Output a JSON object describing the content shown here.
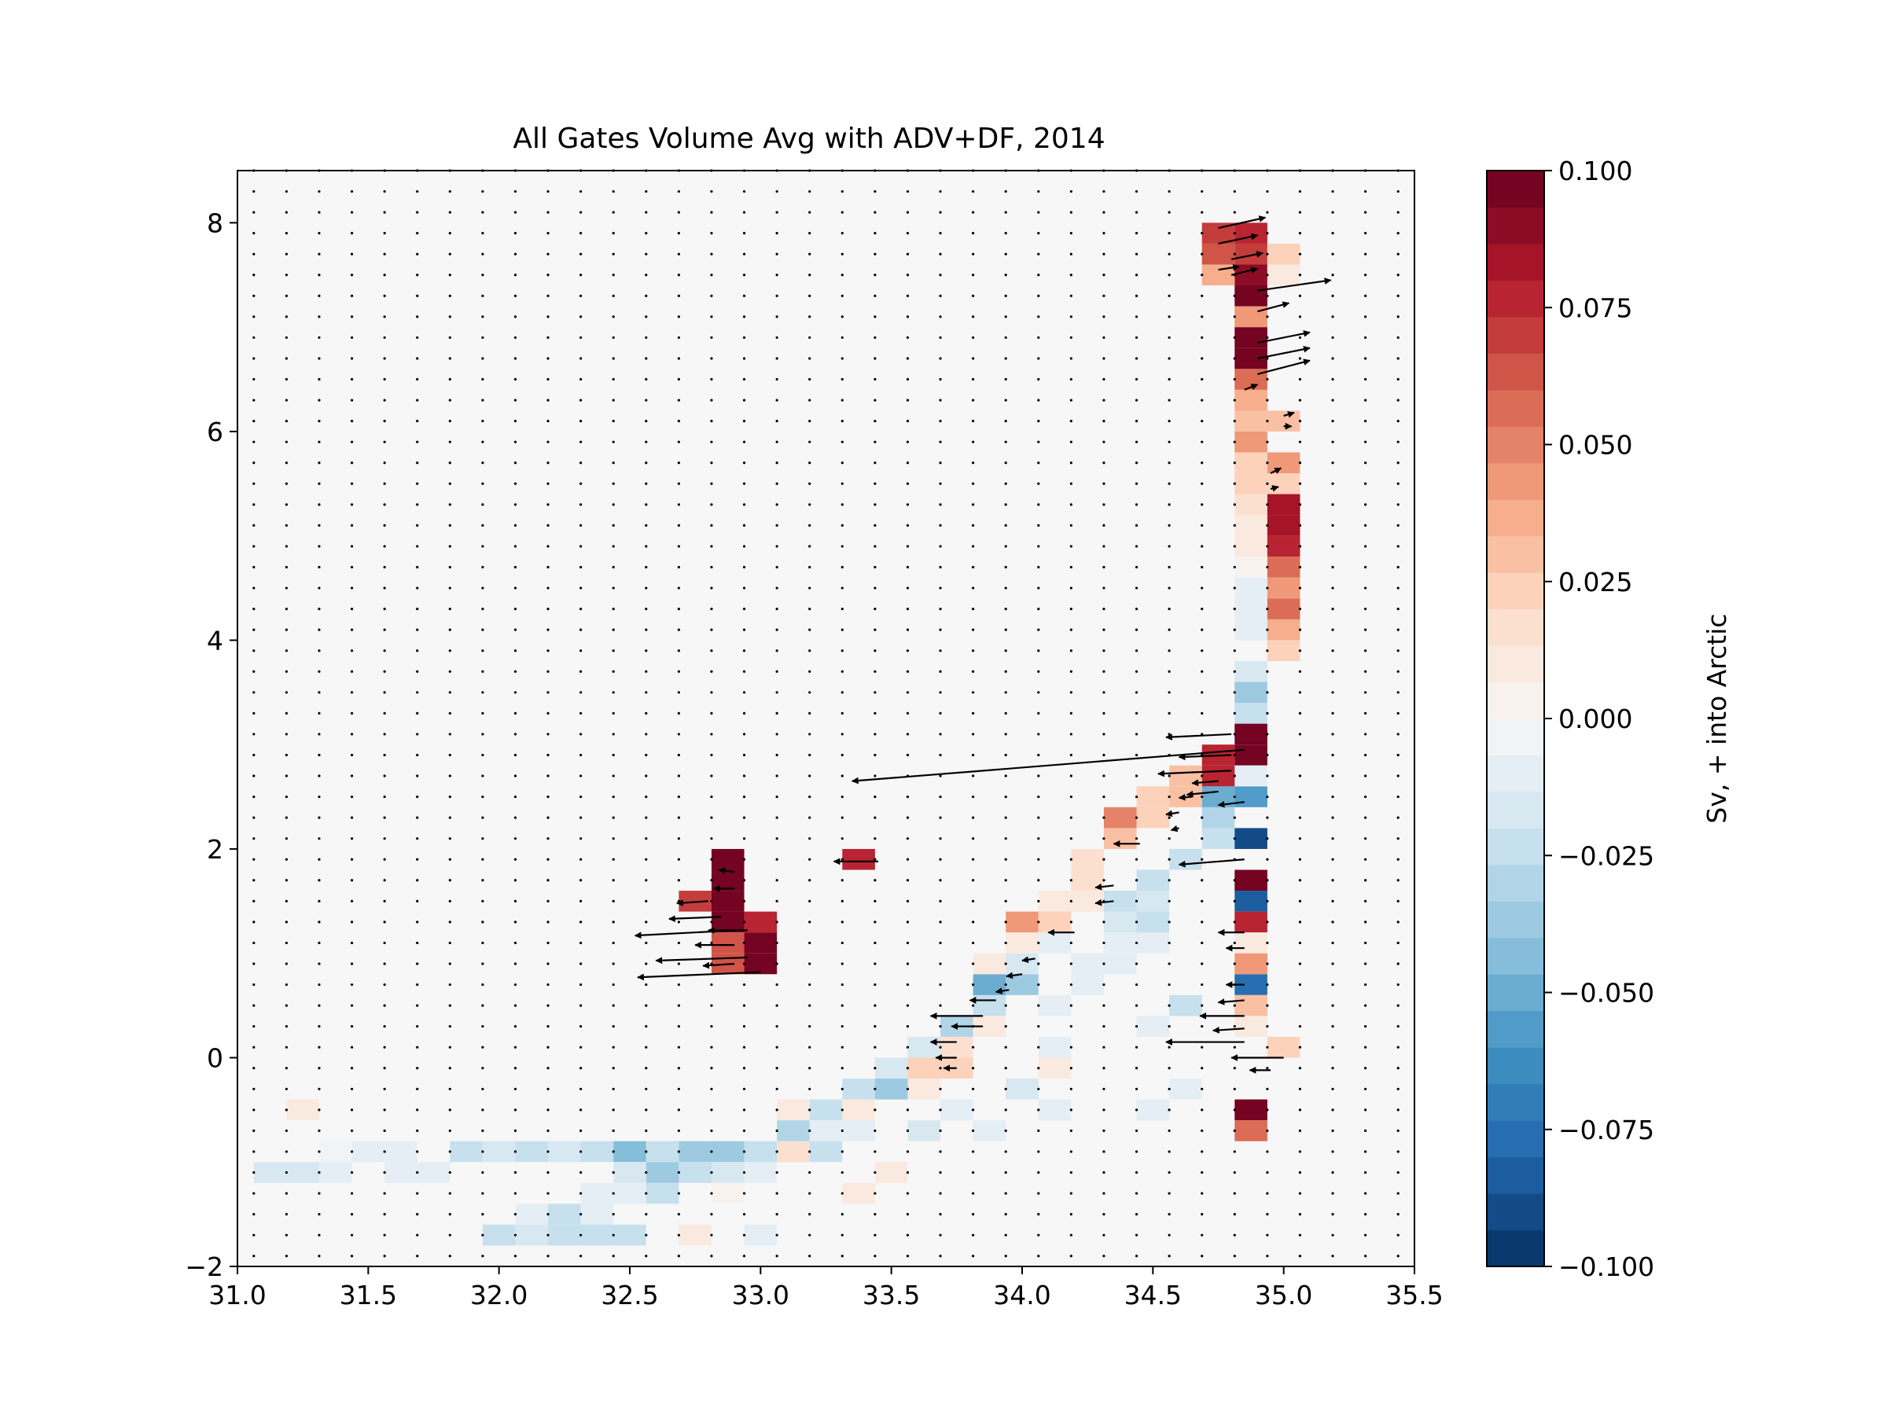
{
  "chart_data": {
    "type": "heatmap",
    "title": "All Gates Volume Avg with ADV+DF, 2014",
    "xlabel": "",
    "ylabel": "",
    "xlim": [
      31.0,
      35.5
    ],
    "ylim": [
      -2,
      8.5
    ],
    "xticks": [
      "31.0",
      "31.5",
      "32.0",
      "32.5",
      "33.0",
      "33.5",
      "34.0",
      "34.5",
      "35.0",
      "35.5"
    ],
    "yticks": [
      "−2",
      "0",
      "2",
      "4",
      "6",
      "8"
    ],
    "bin_width_x": 0.125,
    "bin_height_y": 0.2,
    "colorbar": {
      "label": "Sv, + into Arctic",
      "range": [
        -0.1,
        0.1
      ],
      "ticks": [
        "0.100",
        "0.075",
        "0.050",
        "0.025",
        "0.000",
        "−0.025",
        "−0.050",
        "−0.075",
        "−0.100"
      ],
      "levels": 30,
      "colormap": "RdBu_r"
    },
    "colors": {
      "background_zero": "#f7f7f7",
      "positive_max": "#67001f",
      "negative_max": "#053061"
    },
    "cells": [
      {
        "x": 31.125,
        "y": -1.2,
        "v": -0.015
      },
      {
        "x": 31.25,
        "y": -1.2,
        "v": -0.015
      },
      {
        "x": 31.375,
        "y": -1.2,
        "v": -0.012
      },
      {
        "x": 31.375,
        "y": -1.0,
        "v": -0.006
      },
      {
        "x": 31.5,
        "y": -1.0,
        "v": -0.01
      },
      {
        "x": 31.625,
        "y": -1.0,
        "v": -0.01
      },
      {
        "x": 31.625,
        "y": -1.2,
        "v": -0.01
      },
      {
        "x": 31.75,
        "y": -1.2,
        "v": -0.008
      },
      {
        "x": 31.875,
        "y": -1.0,
        "v": -0.02
      },
      {
        "x": 32.0,
        "y": -1.0,
        "v": -0.015
      },
      {
        "x": 32.125,
        "y": -1.0,
        "v": -0.025
      },
      {
        "x": 32.25,
        "y": -1.0,
        "v": -0.015
      },
      {
        "x": 32.375,
        "y": -1.0,
        "v": -0.025
      },
      {
        "x": 32.5,
        "y": -1.0,
        "v": -0.045
      },
      {
        "x": 32.625,
        "y": -1.0,
        "v": -0.025
      },
      {
        "x": 32.75,
        "y": -1.0,
        "v": -0.035
      },
      {
        "x": 32.875,
        "y": -1.0,
        "v": -0.04
      },
      {
        "x": 33.0,
        "y": -1.0,
        "v": -0.025
      },
      {
        "x": 33.125,
        "y": -1.0,
        "v": -0.02
      },
      {
        "x": 33.25,
        "y": -1.0,
        "v": -0.025
      },
      {
        "x": 32.625,
        "y": -1.2,
        "v": -0.035
      },
      {
        "x": 32.75,
        "y": -1.2,
        "v": -0.025
      },
      {
        "x": 32.875,
        "y": -1.2,
        "v": -0.015
      },
      {
        "x": 32.5,
        "y": -1.2,
        "v": -0.015
      },
      {
        "x": 33.0,
        "y": -1.2,
        "v": -0.01
      },
      {
        "x": 32.625,
        "y": -1.4,
        "v": -0.025
      },
      {
        "x": 32.5,
        "y": -1.4,
        "v": -0.012
      },
      {
        "x": 32.375,
        "y": -1.4,
        "v": -0.01
      },
      {
        "x": 32.875,
        "y": -1.4,
        "v": 0.006
      },
      {
        "x": 33.375,
        "y": -1.4,
        "v": 0.008
      },
      {
        "x": 33.5,
        "y": -1.2,
        "v": 0.01
      },
      {
        "x": 32.25,
        "y": -1.6,
        "v": -0.02
      },
      {
        "x": 32.375,
        "y": -1.6,
        "v": -0.01
      },
      {
        "x": 32.125,
        "y": -1.6,
        "v": -0.008
      },
      {
        "x": 32.0,
        "y": -1.8,
        "v": -0.02
      },
      {
        "x": 32.125,
        "y": -1.8,
        "v": -0.015
      },
      {
        "x": 32.25,
        "y": -1.8,
        "v": -0.025
      },
      {
        "x": 32.375,
        "y": -1.8,
        "v": -0.02
      },
      {
        "x": 32.5,
        "y": -1.8,
        "v": -0.025
      },
      {
        "x": 32.75,
        "y": -1.8,
        "v": 0.008
      },
      {
        "x": 33.0,
        "y": -1.8,
        "v": -0.008
      },
      {
        "x": 31.25,
        "y": -0.6,
        "v": 0.008
      },
      {
        "x": 33.125,
        "y": -0.8,
        "v": -0.03
      },
      {
        "x": 33.25,
        "y": -0.6,
        "v": -0.025
      },
      {
        "x": 33.375,
        "y": -0.4,
        "v": -0.025
      },
      {
        "x": 33.5,
        "y": -0.4,
        "v": -0.035
      },
      {
        "x": 33.5,
        "y": -0.2,
        "v": -0.015
      },
      {
        "x": 33.625,
        "y": 0.0,
        "v": -0.015
      },
      {
        "x": 33.75,
        "y": 0.2,
        "v": -0.03
      },
      {
        "x": 33.875,
        "y": 0.4,
        "v": -0.025
      },
      {
        "x": 34.0,
        "y": 0.6,
        "v": -0.035
      },
      {
        "x": 33.875,
        "y": 0.6,
        "v": -0.05
      },
      {
        "x": 34.0,
        "y": 0.8,
        "v": -0.015
      },
      {
        "x": 34.125,
        "y": 1.0,
        "v": -0.01
      },
      {
        "x": 34.375,
        "y": 1.2,
        "v": -0.015
      },
      {
        "x": 34.375,
        "y": 1.4,
        "v": -0.02
      },
      {
        "x": 34.5,
        "y": 1.4,
        "v": -0.015
      },
      {
        "x": 34.5,
        "y": 1.6,
        "v": -0.02
      },
      {
        "x": 34.625,
        "y": 1.8,
        "v": -0.025
      },
      {
        "x": 34.75,
        "y": 2.0,
        "v": -0.02
      },
      {
        "x": 34.75,
        "y": 2.2,
        "v": -0.03
      },
      {
        "x": 34.75,
        "y": 2.4,
        "v": -0.05
      },
      {
        "x": 34.875,
        "y": 2.4,
        "v": -0.06
      },
      {
        "x": 34.875,
        "y": 2.0,
        "v": -0.09
      },
      {
        "x": 34.875,
        "y": 1.4,
        "v": -0.085
      },
      {
        "x": 34.875,
        "y": 0.6,
        "v": -0.08
      },
      {
        "x": 34.875,
        "y": 3.2,
        "v": -0.025
      },
      {
        "x": 34.875,
        "y": 3.4,
        "v": -0.04
      },
      {
        "x": 34.875,
        "y": 3.6,
        "v": -0.015
      },
      {
        "x": 34.875,
        "y": 4.0,
        "v": -0.01
      },
      {
        "x": 34.875,
        "y": 4.2,
        "v": -0.01
      },
      {
        "x": 34.875,
        "y": 4.4,
        "v": -0.01
      },
      {
        "x": 34.875,
        "y": 4.6,
        "v": 0.006
      },
      {
        "x": 34.875,
        "y": 4.8,
        "v": 0.01
      },
      {
        "x": 34.875,
        "y": 5.0,
        "v": 0.012
      },
      {
        "x": 34.875,
        "y": 5.2,
        "v": 0.015
      },
      {
        "x": 34.875,
        "y": 5.4,
        "v": 0.02
      },
      {
        "x": 34.875,
        "y": 5.6,
        "v": 0.025
      },
      {
        "x": 34.875,
        "y": 5.8,
        "v": 0.045
      },
      {
        "x": 34.875,
        "y": 6.0,
        "v": 0.03
      },
      {
        "x": 34.875,
        "y": 6.2,
        "v": 0.035
      },
      {
        "x": 34.875,
        "y": 6.4,
        "v": 0.06
      },
      {
        "x": 34.875,
        "y": 6.6,
        "v": 0.1
      },
      {
        "x": 34.875,
        "y": 6.8,
        "v": 0.1
      },
      {
        "x": 34.875,
        "y": 7.0,
        "v": 0.045
      },
      {
        "x": 34.875,
        "y": 7.2,
        "v": 0.1
      },
      {
        "x": 34.875,
        "y": 7.4,
        "v": 0.09
      },
      {
        "x": 34.875,
        "y": 7.6,
        "v": 0.07
      },
      {
        "x": 34.875,
        "y": 7.8,
        "v": 0.08
      },
      {
        "x": 34.75,
        "y": 7.8,
        "v": 0.07
      },
      {
        "x": 34.75,
        "y": 7.6,
        "v": 0.065
      },
      {
        "x": 34.75,
        "y": 7.4,
        "v": 0.035
      },
      {
        "x": 35.0,
        "y": 7.6,
        "v": 0.025
      },
      {
        "x": 35.0,
        "y": 7.4,
        "v": 0.01
      },
      {
        "x": 35.0,
        "y": 6.0,
        "v": 0.03
      },
      {
        "x": 35.0,
        "y": 5.6,
        "v": 0.04
      },
      {
        "x": 35.0,
        "y": 5.4,
        "v": 0.02
      },
      {
        "x": 35.0,
        "y": 5.2,
        "v": 0.085
      },
      {
        "x": 35.0,
        "y": 5.0,
        "v": 0.085
      },
      {
        "x": 35.0,
        "y": 4.8,
        "v": 0.08
      },
      {
        "x": 35.0,
        "y": 4.6,
        "v": 0.06
      },
      {
        "x": 35.0,
        "y": 4.4,
        "v": 0.04
      },
      {
        "x": 35.0,
        "y": 4.2,
        "v": 0.055
      },
      {
        "x": 35.0,
        "y": 4.0,
        "v": 0.035
      },
      {
        "x": 35.0,
        "y": 3.8,
        "v": 0.025
      },
      {
        "x": 34.875,
        "y": 3.0,
        "v": 0.1
      },
      {
        "x": 34.875,
        "y": 2.8,
        "v": 0.1
      },
      {
        "x": 34.875,
        "y": 2.6,
        "v": -0.01
      },
      {
        "x": 34.75,
        "y": 2.8,
        "v": 0.08
      },
      {
        "x": 34.75,
        "y": 2.6,
        "v": 0.075
      },
      {
        "x": 34.625,
        "y": 2.6,
        "v": 0.03
      },
      {
        "x": 34.625,
        "y": 2.4,
        "v": 0.03
      },
      {
        "x": 34.5,
        "y": 2.4,
        "v": 0.02
      },
      {
        "x": 34.5,
        "y": 2.2,
        "v": 0.02
      },
      {
        "x": 34.375,
        "y": 2.0,
        "v": 0.03
      },
      {
        "x": 34.375,
        "y": 2.2,
        "v": 0.05
      },
      {
        "x": 34.25,
        "y": 1.8,
        "v": 0.015
      },
      {
        "x": 34.25,
        "y": 1.6,
        "v": 0.015
      },
      {
        "x": 34.125,
        "y": 1.4,
        "v": 0.012
      },
      {
        "x": 34.25,
        "y": 1.4,
        "v": 0.01
      },
      {
        "x": 34.0,
        "y": 1.2,
        "v": 0.04
      },
      {
        "x": 34.125,
        "y": 1.2,
        "v": 0.02
      },
      {
        "x": 34.0,
        "y": 1.0,
        "v": 0.012
      },
      {
        "x": 33.875,
        "y": 0.8,
        "v": 0.008
      },
      {
        "x": 33.875,
        "y": 0.2,
        "v": 0.01
      },
      {
        "x": 33.75,
        "y": 0.0,
        "v": 0.015
      },
      {
        "x": 33.75,
        "y": -0.2,
        "v": 0.02
      },
      {
        "x": 33.625,
        "y": -0.2,
        "v": 0.025
      },
      {
        "x": 33.625,
        "y": -0.4,
        "v": 0.01
      },
      {
        "x": 33.375,
        "y": -0.6,
        "v": 0.008
      },
      {
        "x": 33.375,
        "y": -0.8,
        "v": -0.01
      },
      {
        "x": 33.625,
        "y": -0.8,
        "v": -0.015
      },
      {
        "x": 33.75,
        "y": -0.6,
        "v": -0.01
      },
      {
        "x": 33.875,
        "y": -0.8,
        "v": -0.01
      },
      {
        "x": 34.0,
        "y": -0.4,
        "v": -0.015
      },
      {
        "x": 34.125,
        "y": -0.6,
        "v": -0.008
      },
      {
        "x": 34.125,
        "y": 0.0,
        "v": -0.008
      },
      {
        "x": 34.125,
        "y": 0.4,
        "v": -0.01
      },
      {
        "x": 34.25,
        "y": 0.6,
        "v": -0.008
      },
      {
        "x": 34.25,
        "y": 0.8,
        "v": -0.01
      },
      {
        "x": 34.375,
        "y": 0.8,
        "v": -0.012
      },
      {
        "x": 34.5,
        "y": 1.0,
        "v": -0.01
      },
      {
        "x": 34.375,
        "y": 1.0,
        "v": -0.008
      },
      {
        "x": 34.5,
        "y": 1.2,
        "v": -0.025
      },
      {
        "x": 34.5,
        "y": 0.2,
        "v": -0.01
      },
      {
        "x": 34.625,
        "y": 0.4,
        "v": -0.02
      },
      {
        "x": 34.625,
        "y": -0.4,
        "v": -0.012
      },
      {
        "x": 34.5,
        "y": -0.6,
        "v": -0.01
      },
      {
        "x": 34.125,
        "y": -0.2,
        "v": 0.01
      },
      {
        "x": 33.25,
        "y": -0.8,
        "v": -0.012
      },
      {
        "x": 33.125,
        "y": -0.6,
        "v": 0.008
      },
      {
        "x": 33.125,
        "y": -1.0,
        "v": 0.015
      },
      {
        "x": 34.875,
        "y": 1.6,
        "v": 0.1
      },
      {
        "x": 34.875,
        "y": 1.2,
        "v": 0.075
      },
      {
        "x": 34.875,
        "y": 1.0,
        "v": 0.01
      },
      {
        "x": 34.875,
        "y": 0.8,
        "v": 0.045
      },
      {
        "x": 34.875,
        "y": 0.4,
        "v": 0.03
      },
      {
        "x": 34.875,
        "y": 0.2,
        "v": 0.012
      },
      {
        "x": 34.875,
        "y": -0.6,
        "v": 0.1
      },
      {
        "x": 34.875,
        "y": -0.8,
        "v": 0.055
      },
      {
        "x": 35.0,
        "y": 0.0,
        "v": 0.025
      },
      {
        "x": 33.375,
        "y": 1.8,
        "v": 0.08
      },
      {
        "x": 32.875,
        "y": 1.8,
        "v": 0.1
      },
      {
        "x": 32.875,
        "y": 1.6,
        "v": 0.1
      },
      {
        "x": 32.75,
        "y": 1.4,
        "v": 0.07
      },
      {
        "x": 32.875,
        "y": 1.4,
        "v": 0.1
      },
      {
        "x": 32.875,
        "y": 1.2,
        "v": 0.1
      },
      {
        "x": 33.0,
        "y": 1.2,
        "v": 0.075
      },
      {
        "x": 32.875,
        "y": 1.0,
        "v": 0.065
      },
      {
        "x": 33.0,
        "y": 1.0,
        "v": 0.1
      },
      {
        "x": 33.0,
        "y": 0.8,
        "v": 0.1
      },
      {
        "x": 32.875,
        "y": 0.8,
        "v": 0.065
      }
    ],
    "arrows": [
      {
        "x": 34.75,
        "y": 7.95,
        "u": 0.18,
        "v": 0.1
      },
      {
        "x": 34.75,
        "y": 7.8,
        "u": 0.15,
        "v": 0.08
      },
      {
        "x": 34.8,
        "y": 7.65,
        "u": 0.12,
        "v": 0.06
      },
      {
        "x": 34.8,
        "y": 7.5,
        "u": 0.1,
        "v": 0.06
      },
      {
        "x": 34.75,
        "y": 7.55,
        "u": 0.08,
        "v": 0.03
      },
      {
        "x": 34.9,
        "y": 7.35,
        "u": 0.28,
        "v": 0.1
      },
      {
        "x": 34.9,
        "y": 7.15,
        "u": 0.12,
        "v": 0.08
      },
      {
        "x": 34.9,
        "y": 6.85,
        "u": 0.2,
        "v": 0.1
      },
      {
        "x": 34.9,
        "y": 6.7,
        "u": 0.2,
        "v": 0.1
      },
      {
        "x": 34.9,
        "y": 6.55,
        "u": 0.2,
        "v": 0.13
      },
      {
        "x": 34.85,
        "y": 6.4,
        "u": 0.05,
        "v": 0.05
      },
      {
        "x": 35.0,
        "y": 6.15,
        "u": 0.04,
        "v": 0.03
      },
      {
        "x": 35.0,
        "y": 6.05,
        "u": 0.03,
        "v": 0.0
      },
      {
        "x": 34.95,
        "y": 5.6,
        "u": 0.04,
        "v": 0.05
      },
      {
        "x": 34.95,
        "y": 5.45,
        "u": 0.03,
        "v": 0.02
      },
      {
        "x": 34.8,
        "y": 3.1,
        "u": -0.25,
        "v": -0.03
      },
      {
        "x": 34.8,
        "y": 2.9,
        "u": -0.2,
        "v": -0.02
      },
      {
        "x": 34.85,
        "y": 2.95,
        "u": -1.5,
        "v": -0.3
      },
      {
        "x": 34.8,
        "y": 2.75,
        "u": -0.28,
        "v": -0.03
      },
      {
        "x": 34.75,
        "y": 2.65,
        "u": -0.1,
        "v": -0.02
      },
      {
        "x": 34.75,
        "y": 2.55,
        "u": -0.12,
        "v": -0.03
      },
      {
        "x": 34.65,
        "y": 2.5,
        "u": -0.05,
        "v": -0.01
      },
      {
        "x": 34.85,
        "y": 2.45,
        "u": -0.1,
        "v": -0.03
      },
      {
        "x": 34.6,
        "y": 2.35,
        "u": -0.05,
        "v": -0.02
      },
      {
        "x": 34.6,
        "y": 2.2,
        "u": -0.03,
        "v": -0.02
      },
      {
        "x": 34.45,
        "y": 2.05,
        "u": -0.1,
        "v": 0.0
      },
      {
        "x": 34.85,
        "y": 1.9,
        "u": -0.25,
        "v": -0.05
      },
      {
        "x": 34.35,
        "y": 1.65,
        "u": -0.07,
        "v": -0.02
      },
      {
        "x": 34.35,
        "y": 1.5,
        "u": -0.07,
        "v": -0.02
      },
      {
        "x": 34.2,
        "y": 1.2,
        "u": -0.1,
        "v": 0.0
      },
      {
        "x": 34.85,
        "y": 1.2,
        "u": -0.1,
        "v": 0.0
      },
      {
        "x": 34.85,
        "y": 1.05,
        "u": -0.07,
        "v": 0.0
      },
      {
        "x": 34.05,
        "y": 0.95,
        "u": -0.05,
        "v": -0.02
      },
      {
        "x": 34.0,
        "y": 0.8,
        "u": -0.06,
        "v": -0.02
      },
      {
        "x": 33.95,
        "y": 0.65,
        "u": -0.05,
        "v": -0.02
      },
      {
        "x": 34.85,
        "y": 0.7,
        "u": -0.07,
        "v": 0.0
      },
      {
        "x": 34.85,
        "y": 0.55,
        "u": -0.1,
        "v": -0.02
      },
      {
        "x": 33.9,
        "y": 0.55,
        "u": -0.1,
        "v": 0.0
      },
      {
        "x": 33.85,
        "y": 0.4,
        "u": -0.2,
        "v": 0.0
      },
      {
        "x": 34.85,
        "y": 0.4,
        "u": -0.17,
        "v": 0.0
      },
      {
        "x": 33.85,
        "y": 0.3,
        "u": -0.12,
        "v": 0.0
      },
      {
        "x": 34.85,
        "y": 0.28,
        "u": -0.12,
        "v": -0.02
      },
      {
        "x": 33.75,
        "y": 0.15,
        "u": -0.1,
        "v": 0.0
      },
      {
        "x": 34.85,
        "y": 0.15,
        "u": -0.3,
        "v": 0.0
      },
      {
        "x": 33.75,
        "y": 0.0,
        "u": -0.08,
        "v": 0.0
      },
      {
        "x": 35.0,
        "y": 0.0,
        "u": -0.2,
        "v": 0.0
      },
      {
        "x": 33.75,
        "y": -0.1,
        "u": -0.05,
        "v": 0.0
      },
      {
        "x": 34.95,
        "y": -0.12,
        "u": -0.08,
        "v": 0.0
      },
      {
        "x": 33.45,
        "y": 1.88,
        "u": -0.17,
        "v": 0.0
      },
      {
        "x": 32.9,
        "y": 1.78,
        "u": -0.06,
        "v": 0.02
      },
      {
        "x": 32.9,
        "y": 1.62,
        "u": -0.08,
        "v": 0.0
      },
      {
        "x": 32.8,
        "y": 1.5,
        "u": -0.12,
        "v": -0.02
      },
      {
        "x": 32.85,
        "y": 1.35,
        "u": -0.2,
        "v": -0.02
      },
      {
        "x": 32.9,
        "y": 1.22,
        "u": -0.38,
        "v": -0.05
      },
      {
        "x": 32.95,
        "y": 1.22,
        "u": -0.15,
        "v": 0.0
      },
      {
        "x": 32.9,
        "y": 1.08,
        "u": -0.15,
        "v": 0.0
      },
      {
        "x": 32.95,
        "y": 0.96,
        "u": -0.35,
        "v": -0.03
      },
      {
        "x": 32.9,
        "y": 0.9,
        "u": -0.12,
        "v": -0.02
      },
      {
        "x": 33.0,
        "y": 0.82,
        "u": -0.47,
        "v": -0.05
      }
    ]
  }
}
